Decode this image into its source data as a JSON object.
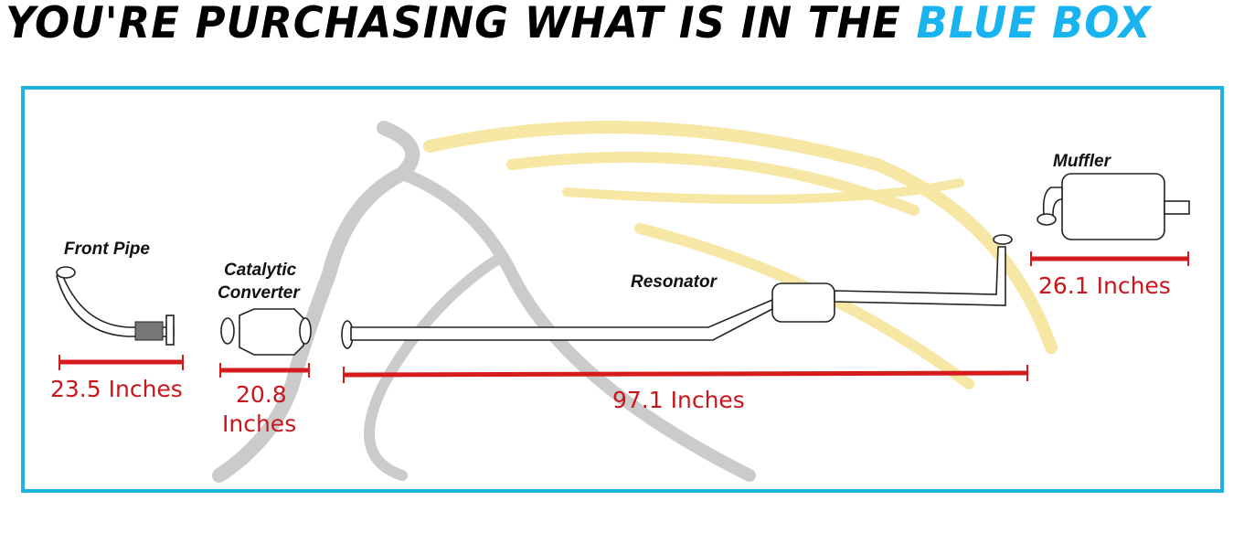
{
  "title": {
    "prefix": "YOU'RE PURCHASING WHAT IS IN THE ",
    "highlight": "BLUE BOX"
  },
  "colors": {
    "box_border": "#1fb3e0",
    "highlight": "#19b4ef",
    "measure": "#c8161d",
    "watermark_gray": "#c8c8c8",
    "watermark_yellow": "#f7e9a8"
  },
  "parts": [
    {
      "name": "Front Pipe",
      "measure": "23.5 Inches"
    },
    {
      "name_line1": "Catalytic",
      "name_line2": "Converter",
      "measure_line1": "20.8",
      "measure_line2": "Inches"
    },
    {
      "name": "Resonator",
      "measure": "97.1 Inches"
    },
    {
      "name": "Muffler",
      "measure": "26.1 Inches"
    }
  ],
  "watermark": "horse-head-logo"
}
